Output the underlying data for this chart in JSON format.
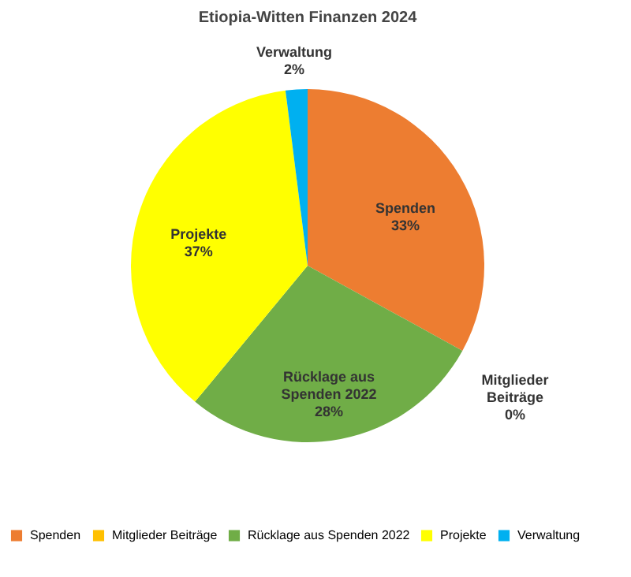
{
  "chart_data": {
    "type": "pie",
    "title": "Etiopia-Witten Finanzen 2024",
    "categories": [
      "Spenden",
      "Mitglieder Beiträge",
      "Rücklage aus Spenden 2022",
      "Projekte",
      "Verwaltung"
    ],
    "values": [
      33,
      0,
      28,
      37,
      2
    ],
    "colors": [
      "#ed7d31",
      "#ffc000",
      "#70ad47",
      "#ffff00",
      "#00b0f0"
    ],
    "value_labels": [
      "33%",
      "0%",
      "28%",
      "37%",
      "2%"
    ],
    "legend": "bottom"
  }
}
